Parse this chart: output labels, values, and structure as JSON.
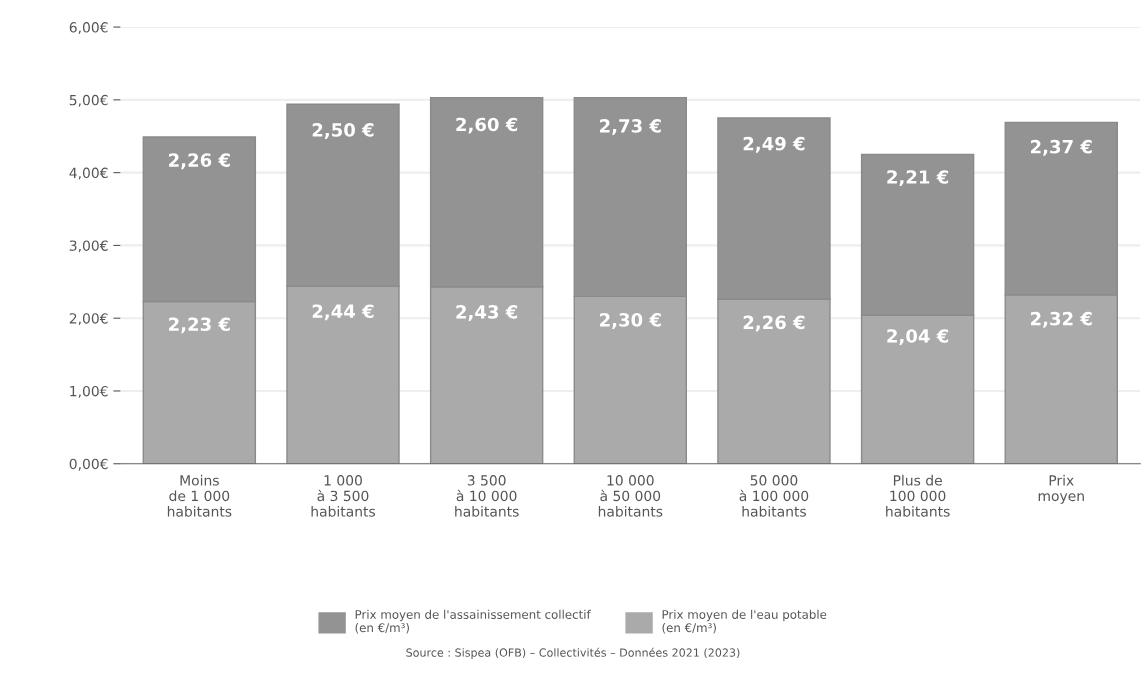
{
  "chart_data": {
    "type": "bar",
    "stacked": true,
    "categories": [
      "Moins\nde 1 000\nhabitants",
      "1 000\nà 3 500\nhabitants",
      "3 500\nà 10 000\nhabitants",
      "10 000\nà 50 000\nhabitants",
      "50 000\nà 100 000\nhabitants",
      "Plus de\n100 000\nhabitants",
      "Prix\nmoyen"
    ],
    "series": [
      {
        "name": "Prix moyen de l'eau potable\n(en €/m³)",
        "color": "#aaaaaa",
        "values": [
          2.23,
          2.44,
          2.43,
          2.3,
          2.26,
          2.04,
          2.32
        ],
        "value_labels": [
          "2,23 €",
          "2,44 €",
          "2,43 €",
          "2,30 €",
          "2,26 €",
          "2,04 €",
          "2,32 €"
        ]
      },
      {
        "name": "Prix moyen de l'assainissement collectif\n(en €/m³)",
        "color": "#939393",
        "values": [
          2.26,
          2.5,
          2.6,
          2.73,
          2.49,
          2.21,
          2.37
        ],
        "value_labels": [
          "2,26 €",
          "2,50 €",
          "2,60 €",
          "2,73 €",
          "2,49 €",
          "2,21 €",
          "2,37 €"
        ]
      }
    ],
    "ylim": [
      0,
      6
    ],
    "yticks": [
      {
        "value": 0,
        "label": "0,00€"
      },
      {
        "value": 1,
        "label": "1,00€"
      },
      {
        "value": 2,
        "label": "2,00€"
      },
      {
        "value": 3,
        "label": "3,00€"
      },
      {
        "value": 4,
        "label": "4,00€"
      },
      {
        "value": 5,
        "label": "5,00€"
      },
      {
        "value": 6,
        "label": "6,00€"
      }
    ],
    "grid": "y",
    "legend": "bottom",
    "annotations": [
      "Source : Sispea (OFB) – Collectivités – Données 2021 (2023)"
    ]
  }
}
